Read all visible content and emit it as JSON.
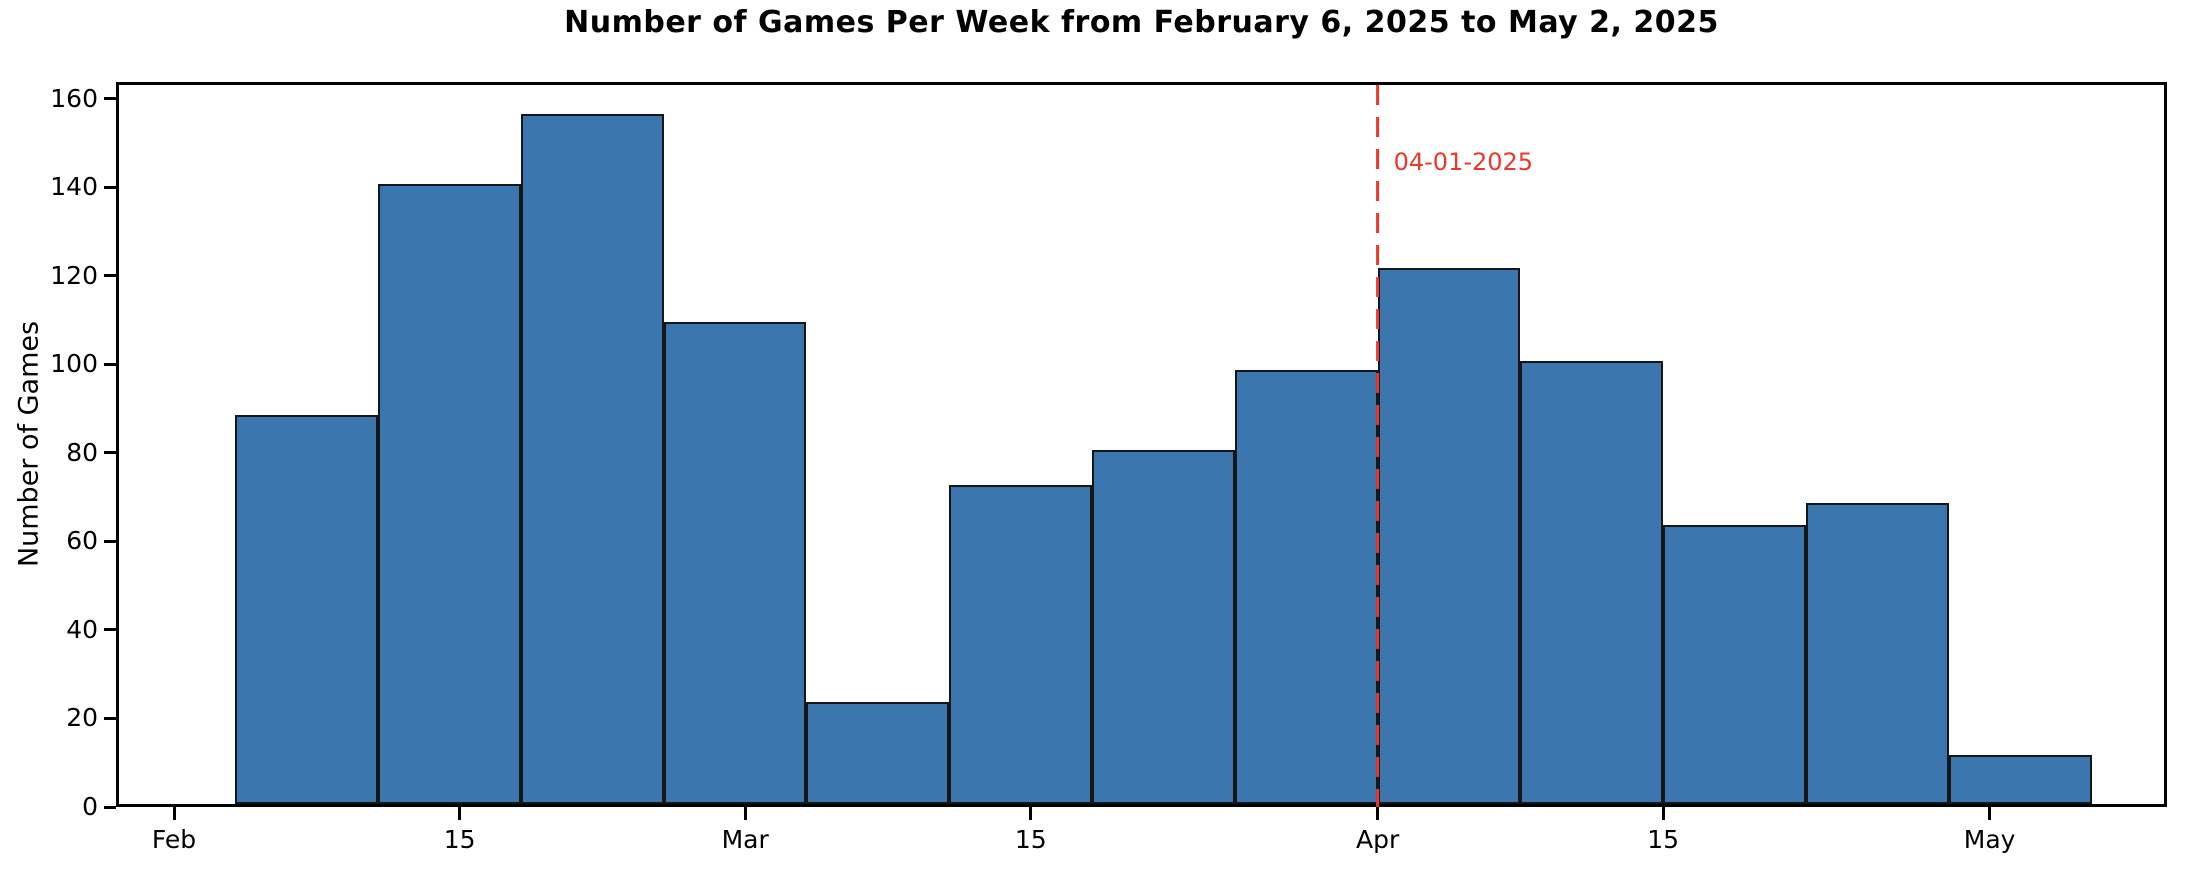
{
  "chart_data": {
    "type": "bar",
    "subtype": "weekly-histogram",
    "title": "Number of Games Per Week from February 6, 2025 to May 2, 2025",
    "xlabel": "",
    "ylabel": "Number of Games",
    "ylim": [
      0,
      163.8
    ],
    "yticks": [
      0,
      20,
      40,
      60,
      80,
      100,
      120,
      140,
      160
    ],
    "x_day_origin": "2025-02-01",
    "xticks": [
      {
        "label": "Feb",
        "day": 0
      },
      {
        "label": "15",
        "day": 14
      },
      {
        "label": "Mar",
        "day": 28
      },
      {
        "label": "15",
        "day": 42
      },
      {
        "label": "Apr",
        "day": 59
      },
      {
        "label": "15",
        "day": 73
      },
      {
        "label": "May",
        "day": 89
      }
    ],
    "bin_width_days": 7,
    "bins": [
      {
        "week_start": "2025-02-04",
        "day": 3,
        "games": 88
      },
      {
        "week_start": "2025-02-11",
        "day": 10,
        "games": 140
      },
      {
        "week_start": "2025-02-18",
        "day": 17,
        "games": 156
      },
      {
        "week_start": "2025-02-25",
        "day": 24,
        "games": 109
      },
      {
        "week_start": "2025-03-04",
        "day": 31,
        "games": 23
      },
      {
        "week_start": "2025-03-11",
        "day": 38,
        "games": 72
      },
      {
        "week_start": "2025-03-18",
        "day": 45,
        "games": 80
      },
      {
        "week_start": "2025-03-25",
        "day": 52,
        "games": 98
      },
      {
        "week_start": "2025-04-01",
        "day": 59,
        "games": 121
      },
      {
        "week_start": "2025-04-08",
        "day": 66,
        "games": 100
      },
      {
        "week_start": "2025-04-15",
        "day": 73,
        "games": 63
      },
      {
        "week_start": "2025-04-22",
        "day": 80,
        "games": 68
      },
      {
        "week_start": "2025-04-29",
        "day": 87,
        "games": 11
      }
    ],
    "annotation": {
      "label": "04-01-2025",
      "day": 59
    },
    "colors": {
      "bar_fill": "#3b76af",
      "bar_edge": "#161616",
      "reference_line": "#e8392b",
      "axis": "#000000",
      "background": "#ffffff"
    },
    "grid": false,
    "legend": false
  }
}
